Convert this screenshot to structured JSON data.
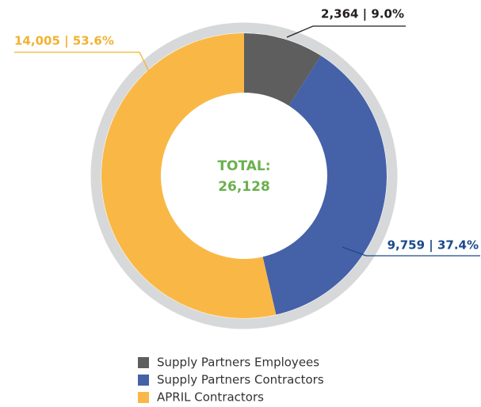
{
  "chart_data": {
    "type": "donut",
    "categories": [
      "Supply Partners Employees",
      "Supply Partners Contractors",
      "APRIL Contractors"
    ],
    "values": [
      2364,
      9759,
      14005
    ],
    "value_labels": [
      "2,364 | 9.0%",
      "9,759 | 37.4%",
      "14,005 | 53.6%"
    ],
    "colors": [
      "#5e5e5e",
      "#4561a8",
      "#f9b845"
    ],
    "label_colors": [
      "#231f20",
      "#1a4b8c",
      "#f2b230"
    ],
    "center_text": [
      "TOTAL:",
      "26,128"
    ],
    "legend": "bottom"
  }
}
